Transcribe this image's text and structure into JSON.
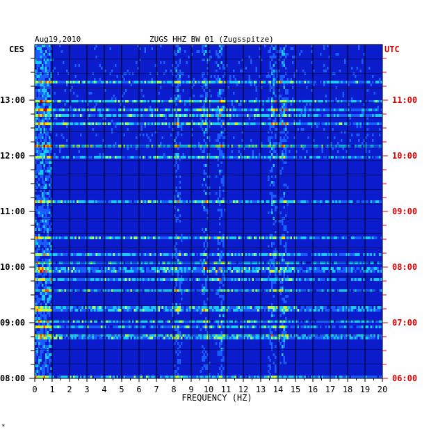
{
  "header": {
    "date": "Aug19,2010",
    "station": "ZUGS HHZ BW 01 (Zugsspitze)"
  },
  "left_axis": {
    "label": "CES",
    "ticks": [
      "13:00",
      "12:00",
      "11:00",
      "10:00",
      "09:00",
      "08:00"
    ]
  },
  "right_axis": {
    "label": "UTC",
    "ticks": [
      "11:00",
      "10:00",
      "09:00",
      "08:00",
      "07:00",
      "06:00"
    ]
  },
  "footer_mark": "*",
  "colors": {
    "background": "#0a1ccc",
    "grid": "#000000",
    "utc_text": "#dd0000",
    "text": "#000000"
  },
  "chart_data": {
    "type": "heatmap",
    "xlabel": "FREQUENCY (HZ)",
    "x_ticks": [
      "0",
      "1",
      "2",
      "3",
      "4",
      "5",
      "6",
      "7",
      "8",
      "9",
      "10",
      "11",
      "12",
      "13",
      "14",
      "15",
      "16",
      "17",
      "18",
      "19",
      "20"
    ],
    "xlim": [
      0,
      20
    ],
    "y_local_range": [
      "08:00",
      "13:45"
    ],
    "y_utc_range": [
      "06:00",
      "11:45"
    ],
    "colormap": [
      "#0a1ccc",
      "#1a5cff",
      "#19c8ff",
      "#9cff6a",
      "#ffe500",
      "#ff5a00",
      "#b00000"
    ],
    "grid": true,
    "note_bands_hz": [
      {
        "center": 8.2,
        "label": ""
      },
      {
        "center": 9.8,
        "label": ""
      },
      {
        "center": 10.7,
        "label": ""
      },
      {
        "center": 13.7,
        "label": ""
      },
      {
        "center": 14.3,
        "label": ""
      }
    ]
  }
}
